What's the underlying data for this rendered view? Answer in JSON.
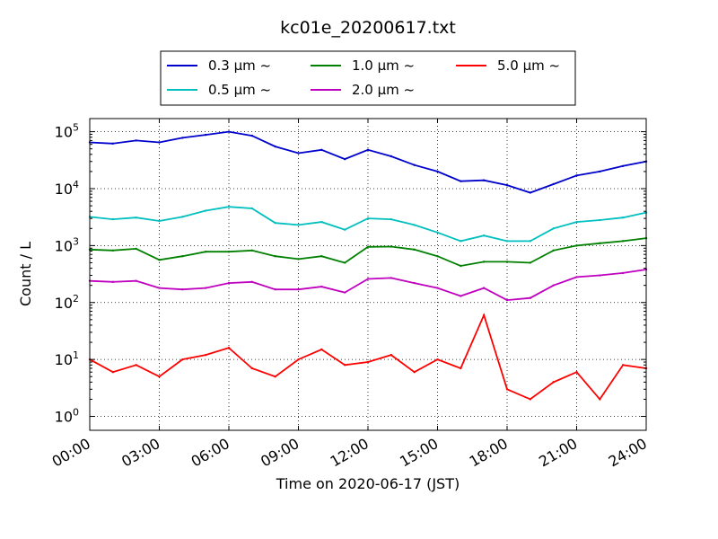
{
  "chart_data": {
    "type": "line",
    "title": "kc01e_20200617.txt",
    "xlabel": "Time on 2020-06-17 (JST)",
    "ylabel": "Count / L",
    "yscale": "log",
    "xlim": [
      "2020-06-17 00:00",
      "2020-06-18 00:00"
    ],
    "ylim": [
      0.57,
      170000
    ],
    "x_tick_labels": [
      "00:00",
      "03:00",
      "06:00",
      "09:00",
      "12:00",
      "15:00",
      "18:00",
      "21:00",
      "24:00"
    ],
    "y_tick_labels": [
      {
        "base": "10",
        "exp": "0"
      },
      {
        "base": "10",
        "exp": "1"
      },
      {
        "base": "10",
        "exp": "2"
      },
      {
        "base": "10",
        "exp": "3"
      },
      {
        "base": "10",
        "exp": "4"
      },
      {
        "base": "10",
        "exp": "5"
      }
    ],
    "grid": true,
    "legend_placement": "top, above plot, 3 columns",
    "x": [
      "00:00",
      "01:00",
      "02:00",
      "03:00",
      "04:00",
      "05:00",
      "06:00",
      "07:00",
      "08:00",
      "09:00",
      "10:00",
      "11:00",
      "12:00",
      "13:00",
      "14:00",
      "15:00",
      "16:00",
      "17:00",
      "18:00",
      "19:00",
      "20:00",
      "21:00",
      "22:00",
      "23:00",
      "24:00"
    ],
    "series": [
      {
        "name": "0.3 μm ~",
        "color": "#0000cc",
        "values": [
          65000,
          62000,
          70000,
          65000,
          78000,
          88000,
          100000,
          85000,
          55000,
          42000,
          48000,
          33000,
          48000,
          37000,
          26000,
          20000,
          13500,
          14000,
          11500,
          8500,
          12000,
          17000,
          20000,
          25000,
          30000
        ]
      },
      {
        "name": "0.5 μm ~",
        "color": "#00bfbf",
        "values": [
          3200,
          2900,
          3100,
          2700,
          3200,
          4100,
          4800,
          4500,
          2500,
          2300,
          2600,
          1900,
          3000,
          2900,
          2300,
          1700,
          1200,
          1500,
          1200,
          1200,
          2000,
          2600,
          2800,
          3100,
          3800
        ]
      },
      {
        "name": "1.0 μm ~",
        "color": "#008000",
        "values": [
          850,
          820,
          880,
          560,
          650,
          780,
          780,
          820,
          650,
          580,
          650,
          500,
          950,
          960,
          850,
          650,
          440,
          520,
          520,
          500,
          820,
          1000,
          1100,
          1200,
          1350
        ]
      },
      {
        "name": "2.0 μm ~",
        "color": "#bf00bf",
        "values": [
          240,
          230,
          240,
          180,
          170,
          180,
          220,
          230,
          170,
          170,
          190,
          150,
          260,
          270,
          220,
          180,
          130,
          180,
          110,
          120,
          200,
          280,
          300,
          330,
          380
        ]
      },
      {
        "name": "5.0 μm ~",
        "color": "#ff0000",
        "values": [
          10,
          6,
          8,
          5,
          10,
          12,
          16,
          7,
          5,
          10,
          15,
          8,
          9,
          12,
          6,
          10,
          7,
          60,
          3,
          2,
          4,
          6,
          2,
          8,
          7
        ]
      }
    ]
  }
}
